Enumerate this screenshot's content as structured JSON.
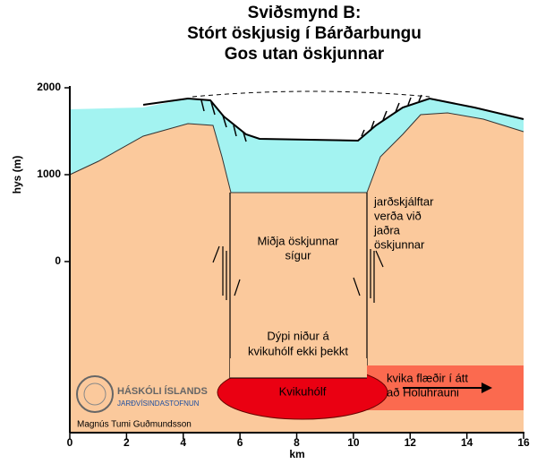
{
  "title": [
    "Sviðsmynd B:",
    "Stórt öskjusig í Bárðarbungu",
    "Gos utan öskjunnar"
  ],
  "axes": {
    "y_label": "hys (m)",
    "y_ticks": [
      2000,
      1000,
      0
    ],
    "x_label": "km",
    "x_ticks": [
      0,
      2,
      4,
      6,
      8,
      10,
      12,
      14,
      16
    ]
  },
  "annotations": {
    "center": [
      "Miðja öskjunnar",
      "sígur"
    ],
    "depth": [
      "Dýpi niður á",
      "kvikuhólf ekki þekkt"
    ],
    "faults": [
      "jarðskjálftar",
      "verða við",
      "jaðra",
      "öskjunnar"
    ],
    "chamber": "Kvikuhólf",
    "flow": [
      "kvika flæðir í átt",
      "að Holuhrauni"
    ]
  },
  "credits": {
    "institution": "HÁSKÓLI ÍSLANDS",
    "department": "JARÐVÍSINDASTOFNUN",
    "author": "Magnús Tumi Guðmundsson"
  }
}
